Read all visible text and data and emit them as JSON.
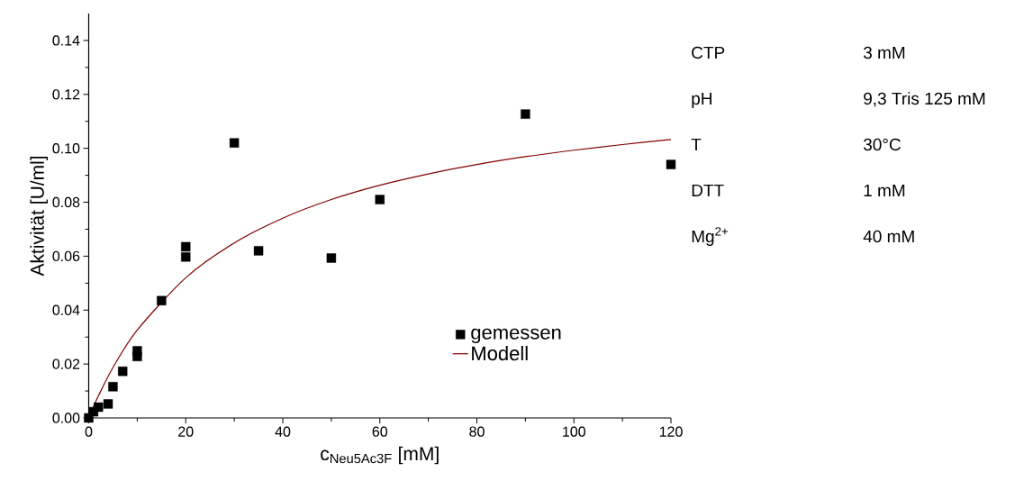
{
  "chart_data": {
    "type": "scatter",
    "xlabel": "c$_{Neu5Ac3F}$ [mM]",
    "ylabel": "Aktivität [U/ml]",
    "xlim": [
      0,
      120
    ],
    "ylim": [
      0,
      0.15
    ],
    "xticks": [
      0,
      20,
      40,
      60,
      80,
      100,
      120
    ],
    "yticks": [
      {
        "value": 0,
        "label": "0.00"
      },
      {
        "value": 0.02,
        "label": "0.02"
      },
      {
        "value": 0.04,
        "label": "0.04"
      },
      {
        "value": 0.06,
        "label": "0.06"
      },
      {
        "value": 0.08,
        "label": "0.08"
      },
      {
        "value": 0.1,
        "label": "0.10"
      },
      {
        "value": 0.12,
        "label": "0.12"
      },
      {
        "value": 0.14,
        "label": "0.14"
      }
    ],
    "grid": false,
    "legend": "bottom",
    "series": [
      {
        "name": "gemessen",
        "type": "scatter",
        "marker": "square",
        "color": "#000000",
        "x": [
          0,
          1,
          2,
          4,
          5,
          7,
          10,
          10,
          15,
          20,
          20,
          30,
          35,
          50,
          60,
          90,
          120
        ],
        "values": [
          0,
          0.0023,
          0.004,
          0.0052,
          0.0116,
          0.0173,
          0.0249,
          0.0228,
          0.0435,
          0.0635,
          0.0597,
          0.102,
          0.062,
          0.0593,
          0.081,
          0.1127,
          0.094
        ]
      },
      {
        "name": "Modell",
        "type": "line",
        "marker": "none",
        "line_style": "solid",
        "color": "#800000",
        "x": [
          0,
          1,
          2,
          5,
          10,
          20,
          30,
          40,
          50,
          60,
          70,
          80,
          90,
          100,
          110,
          120
        ],
        "values": [
          0,
          0.0042,
          0.0082,
          0.0187,
          0.0326,
          0.052,
          0.0649,
          0.0741,
          0.081,
          0.0863,
          0.0905,
          0.094,
          0.0969,
          0.0993,
          0.1014,
          0.1033
        ]
      }
    ],
    "annotations": [
      "CTP",
      "3 mM",
      "pH",
      "9,3 Tris 125 mM",
      "T",
      "30°C",
      "DTT",
      "1 mM",
      "Mg$^{2+}$",
      "40 mM"
    ]
  }
}
